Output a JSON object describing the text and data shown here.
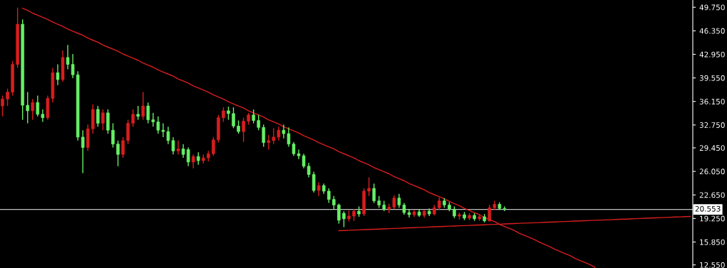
{
  "chart_data": {
    "type": "candlestick",
    "categories": [
      null,
      null,
      null,
      null,
      null,
      null,
      null,
      null,
      null,
      null,
      null,
      null,
      null,
      null,
      null,
      null,
      null,
      null,
      null,
      null,
      null,
      null,
      null,
      null,
      null,
      null,
      null,
      null,
      null,
      null,
      null,
      null,
      null,
      null,
      null,
      null,
      null,
      null,
      null,
      null,
      null,
      null,
      null,
      null,
      null,
      null,
      null,
      null,
      null,
      null,
      null,
      null,
      null,
      null,
      null,
      null,
      null,
      null,
      null,
      null,
      null,
      null,
      null,
      null,
      null,
      null,
      null,
      null,
      null,
      null,
      null,
      null,
      null,
      null,
      null,
      null,
      null,
      null,
      null,
      null,
      null,
      null,
      null,
      null,
      null,
      null,
      null,
      null,
      null,
      null,
      null,
      null,
      null,
      null,
      null,
      null,
      null,
      null,
      null,
      null,
      null,
      null,
      null,
      null,
      null,
      null,
      null,
      null,
      null,
      null,
      null,
      null,
      null,
      null,
      null,
      null,
      null,
      null,
      null,
      null,
      null,
      null,
      null,
      null,
      null,
      null,
      null,
      null,
      null,
      null,
      null,
      null,
      null,
      null,
      null,
      null,
      null,
      null
    ],
    "ohlc": [
      [
        35.5,
        37,
        34,
        36.5
      ],
      [
        36.5,
        38,
        35.5,
        37.5
      ],
      [
        37.5,
        42,
        37,
        41.5
      ],
      [
        41.5,
        49.7,
        41,
        47.3
      ],
      [
        47.3,
        48,
        33.5,
        35.6
      ],
      [
        35.6,
        37.5,
        33,
        34.8
      ],
      [
        34.8,
        36.5,
        33.5,
        36
      ],
      [
        36,
        37,
        34,
        34.3
      ],
      [
        34.3,
        35,
        33.2,
        33.8
      ],
      [
        33.8,
        37,
        33.5,
        36.6
      ],
      [
        36.6,
        41,
        36,
        40.3
      ],
      [
        40.3,
        41.5,
        38.5,
        39.3
      ],
      [
        39.3,
        43.5,
        39,
        42.5
      ],
      [
        42.5,
        44.3,
        40.8,
        41.5
      ],
      [
        41.5,
        43,
        39.5,
        40
      ],
      [
        40,
        40.5,
        30.5,
        31
      ],
      [
        31,
        32,
        25.8,
        29.5
      ],
      [
        29.5,
        32.8,
        29,
        32.2
      ],
      [
        32.2,
        35.7,
        31.5,
        35
      ],
      [
        35,
        35.5,
        32.5,
        33
      ],
      [
        33,
        35,
        32,
        34.5
      ],
      [
        34.5,
        35,
        31.5,
        32
      ],
      [
        32,
        33,
        29.5,
        30
      ],
      [
        30,
        30.5,
        26.8,
        28.5
      ],
      [
        28.5,
        31,
        28,
        30.5
      ],
      [
        30.5,
        33.5,
        30,
        33
      ],
      [
        33,
        35,
        32.5,
        34.3
      ],
      [
        34.3,
        35.5,
        33.5,
        34
      ],
      [
        34,
        37.5,
        33.5,
        35.5
      ],
      [
        35.5,
        36,
        33,
        33.5
      ],
      [
        33.5,
        34.5,
        32.5,
        33.2
      ],
      [
        33.2,
        34,
        31.5,
        32
      ],
      [
        32,
        33,
        31,
        31.8
      ],
      [
        31.8,
        32.5,
        30,
        30.5
      ],
      [
        30.5,
        31,
        28.5,
        29
      ],
      [
        29,
        30.5,
        28.5,
        29.3
      ],
      [
        29.3,
        30,
        28,
        28.5
      ],
      [
        29.2,
        29.5,
        26.8,
        27.4
      ],
      [
        27.4,
        28.5,
        26.5,
        28.2
      ],
      [
        28.2,
        28.8,
        27,
        27.6
      ],
      [
        27.6,
        28.5,
        27.2,
        28
      ],
      [
        28,
        29,
        27.5,
        28.6
      ],
      [
        28.6,
        31,
        28.3,
        30.6
      ],
      [
        30.6,
        34.2,
        30.2,
        33.8
      ],
      [
        33.8,
        35.3,
        33.2,
        34.8
      ],
      [
        34.8,
        35.4,
        33.5,
        34.4
      ],
      [
        34.4,
        35.3,
        32.3,
        32.6
      ],
      [
        32.6,
        33.4,
        31.5,
        31.8
      ],
      [
        31.8,
        33.8,
        30.3,
        33.3
      ],
      [
        33.3,
        34.5,
        32.8,
        34.2
      ],
      [
        34.2,
        35,
        33,
        33.4
      ],
      [
        33.4,
        34.2,
        32,
        32.4
      ],
      [
        32.4,
        32.8,
        29.6,
        30.2
      ],
      [
        30.2,
        31.3,
        29.2,
        30.5
      ],
      [
        30.5,
        32.3,
        30,
        31
      ],
      [
        31,
        32.5,
        30.5,
        32
      ],
      [
        32,
        32.8,
        30.8,
        31.5
      ],
      [
        31.5,
        32.4,
        29.6,
        30
      ],
      [
        30,
        30.3,
        28.3,
        28.6
      ],
      [
        28.6,
        29.2,
        27.8,
        28.3
      ],
      [
        28.3,
        28.6,
        26.5,
        26.8
      ],
      [
        26.8,
        27.3,
        25.2,
        25.6
      ],
      [
        25.6,
        26,
        23,
        23.3
      ],
      [
        23.3,
        24.5,
        22.5,
        24
      ],
      [
        24,
        24.3,
        22.8,
        23.2
      ],
      [
        23.2,
        23.6,
        21.5,
        22
      ],
      [
        22,
        22.5,
        20.6,
        21.2
      ],
      [
        21.2,
        21.4,
        18.5,
        19
      ],
      [
        20,
        20.3,
        18,
        19.2
      ],
      [
        19.2,
        20.4,
        18.8,
        19.6
      ],
      [
        19.6,
        20.6,
        18.9,
        20.3
      ],
      [
        20.3,
        21,
        19.5,
        19.9
      ],
      [
        19.9,
        23.6,
        19.6,
        23.2
      ],
      [
        23.2,
        25.2,
        22.5,
        23.6
      ],
      [
        23.6,
        24.3,
        21.5,
        21.8
      ],
      [
        21.8,
        22.5,
        20.8,
        21.2
      ],
      [
        21.2,
        21.8,
        20.3,
        20.6
      ],
      [
        20.6,
        21.4,
        20,
        20.9
      ],
      [
        20.9,
        22.6,
        20.6,
        22.2
      ],
      [
        22.2,
        22.8,
        20.8,
        21.2
      ],
      [
        21.2,
        21.5,
        19.8,
        20.1
      ],
      [
        20.1,
        20.6,
        19.4,
        19.8
      ],
      [
        19.8,
        20.5,
        19.5,
        20.2
      ],
      [
        20.2,
        20.6,
        19.5,
        19.7
      ],
      [
        19.7,
        20.5,
        19.4,
        20.3
      ],
      [
        20.3,
        20.7,
        19.6,
        19.9
      ],
      [
        19.9,
        21.2,
        19.7,
        20.8
      ],
      [
        20.8,
        22.3,
        20.5,
        21.8
      ],
      [
        21.8,
        22.2,
        20.8,
        21.2
      ],
      [
        21.2,
        21.6,
        20.3,
        20.6
      ],
      [
        20.6,
        21,
        19.3,
        19.6
      ],
      [
        19.6,
        20.1,
        19.1,
        19.8
      ],
      [
        19.8,
        20.2,
        19,
        19.3
      ],
      [
        19.3,
        20,
        19,
        19.7
      ],
      [
        19.7,
        20,
        18.9,
        19.2
      ],
      [
        19.2,
        19.8,
        18.9,
        19.5
      ],
      [
        19.5,
        19.9,
        18.7,
        18.9
      ],
      [
        18.9,
        21.2,
        18.8,
        20.8
      ],
      [
        20.8,
        21.8,
        20.5,
        21.3
      ],
      [
        21.3,
        21.6,
        20.5,
        20.7
      ],
      [
        20.7,
        21,
        20.3,
        20.55
      ],
      null,
      null,
      null,
      null,
      null,
      null,
      null,
      null,
      null,
      null,
      null,
      null,
      null,
      null,
      null,
      null,
      null,
      null,
      null,
      null,
      null,
      null,
      null,
      null,
      null,
      null,
      null,
      null,
      null,
      null,
      null,
      null,
      null,
      null,
      null,
      null,
      null
    ],
    "colors": [
      "#d81e1e",
      "#d81e1e",
      "#d81e1e",
      "#d81e1e",
      "#66f066",
      "#66f066",
      "#d81e1e",
      "#66f066",
      "#66f066",
      "#d81e1e",
      "#d81e1e",
      "#66f066",
      "#d81e1e",
      "#66f066",
      "#66f066",
      "#66f066",
      "#66f066",
      "#d81e1e",
      "#d81e1e",
      "#66f066",
      "#d81e1e",
      "#66f066",
      "#66f066",
      "#66f066",
      "#d81e1e",
      "#d81e1e",
      "#d81e1e",
      "#66f066",
      "#d81e1e",
      "#66f066",
      "#66f066",
      "#66f066",
      "#66f066",
      "#66f066",
      "#66f066",
      "#d81e1e",
      "#66f066",
      "#66f066",
      "#d81e1e",
      "#66f066",
      "#d81e1e",
      "#d81e1e",
      "#d81e1e",
      "#d81e1e",
      "#d81e1e",
      "#66f066",
      "#66f066",
      "#66f066",
      "#d81e1e",
      "#d81e1e",
      "#66f066",
      "#66f066",
      "#66f066",
      "#d81e1e",
      "#d81e1e",
      "#d81e1e",
      "#66f066",
      "#66f066",
      "#66f066",
      "#66f066",
      "#66f066",
      "#66f066",
      "#66f066",
      "#d81e1e",
      "#66f066",
      "#66f066",
      "#66f066",
      "#66f066",
      "#66f066",
      "#d81e1e",
      "#d81e1e",
      "#66f066",
      "#d81e1e",
      "#d81e1e",
      "#66f066",
      "#66f066",
      "#66f066",
      "#d81e1e",
      "#d81e1e",
      "#66f066",
      "#66f066",
      "#66f066",
      "#d81e1e",
      "#66f066",
      "#d81e1e",
      "#66f066",
      "#d81e1e",
      "#d81e1e",
      "#66f066",
      "#66f066",
      "#66f066",
      "#d81e1e",
      "#66f066",
      "#d81e1e",
      "#66f066",
      "#d81e1e",
      "#66f066",
      "#d81e1e",
      "#d81e1e",
      "#66f066",
      "#66f066",
      null,
      null,
      null,
      null,
      null,
      null,
      null,
      null,
      null,
      null,
      null,
      null,
      null,
      null,
      null,
      null,
      null,
      null,
      null,
      null,
      null,
      null,
      null,
      null,
      null,
      null,
      null,
      null,
      null,
      null,
      null,
      null,
      null,
      null,
      null,
      null,
      null
    ],
    "series": [
      {
        "type": "line",
        "color": "#d81e1e",
        "values": [
          null,
          null,
          null,
          null,
          49.6,
          49.3,
          48.9,
          48.6,
          48.3,
          48.0,
          47.6,
          47.3,
          47.0,
          46.6,
          46.3,
          46.0,
          45.7,
          45.3,
          45.0,
          44.7,
          44.3,
          44.0,
          43.7,
          43.4,
          43.0,
          42.7,
          42.4,
          42.1,
          41.7,
          41.4,
          41.1,
          40.7,
          40.4,
          40.1,
          39.8,
          39.4,
          39.1,
          38.8,
          38.4,
          38.1,
          37.8,
          37.5,
          37.1,
          36.8,
          36.5,
          36.1,
          35.8,
          35.5,
          35.2,
          34.8,
          34.5,
          34.2,
          33.9,
          33.5,
          33.2,
          32.9,
          32.5,
          32.2,
          31.9,
          31.6,
          31.2,
          30.9,
          30.6,
          30.2,
          29.9,
          29.6,
          29.3,
          28.9,
          28.6,
          28.3,
          28.0,
          27.6,
          27.3,
          27.0,
          26.6,
          26.3,
          26.0,
          25.7,
          25.3,
          25.0,
          24.7,
          24.3,
          24.0,
          23.7,
          23.4,
          23.0,
          22.7,
          22.4,
          22.1,
          21.7,
          21.4,
          21.1,
          20.7,
          20.4,
          20.1,
          19.8,
          19.4,
          19.1,
          18.8,
          18.4,
          18.1,
          17.8,
          17.5,
          17.1,
          16.8,
          16.5,
          16.2,
          15.8,
          15.5,
          15.2,
          14.8,
          14.5,
          14.2,
          13.9,
          13.5,
          13.2,
          12.9,
          12.6,
          12.2,
          null,
          null,
          null,
          null,
          null,
          null,
          null,
          null,
          null,
          null,
          null,
          null,
          null,
          null,
          null,
          null,
          null,
          null,
          null
        ]
      },
      {
        "type": "line",
        "color": "#d81e1e",
        "values": [
          null,
          null,
          null,
          null,
          null,
          null,
          null,
          null,
          null,
          null,
          null,
          null,
          null,
          null,
          null,
          null,
          null,
          null,
          null,
          null,
          null,
          null,
          null,
          null,
          null,
          null,
          null,
          null,
          null,
          null,
          null,
          null,
          null,
          null,
          null,
          null,
          null,
          null,
          null,
          null,
          null,
          null,
          null,
          null,
          null,
          null,
          null,
          null,
          null,
          null,
          null,
          null,
          null,
          null,
          null,
          null,
          null,
          null,
          null,
          null,
          null,
          null,
          null,
          null,
          null,
          null,
          null,
          17.49,
          17.52,
          17.55,
          17.58,
          17.61,
          17.64,
          17.67,
          17.7,
          17.72,
          17.75,
          17.78,
          17.81,
          17.84,
          17.87,
          17.9,
          17.93,
          17.96,
          17.99,
          18.02,
          18.05,
          18.08,
          18.11,
          18.14,
          18.16,
          18.19,
          18.22,
          18.25,
          18.28,
          18.31,
          18.34,
          18.37,
          18.4,
          18.43,
          18.46,
          18.49,
          18.52,
          18.55,
          18.58,
          18.6,
          18.63,
          18.66,
          18.69,
          18.72,
          18.75,
          18.78,
          18.81,
          18.84,
          18.87,
          18.9,
          18.93,
          18.96,
          18.99,
          19.02,
          19.04,
          19.07,
          19.1,
          19.13,
          19.16,
          19.19,
          19.22,
          19.25,
          19.28,
          19.31,
          19.34,
          19.37,
          19.4,
          19.43,
          19.46,
          19.48,
          19.51,
          19.54
        ]
      }
    ],
    "ylim": [
      12.1,
      50.8
    ],
    "yticks": [
      {
        "value": 49.75,
        "label": "49.750"
      },
      {
        "value": 46.35,
        "label": "46.350"
      },
      {
        "value": 42.95,
        "label": "42.950"
      },
      {
        "value": 39.55,
        "label": "39.550"
      },
      {
        "value": 36.15,
        "label": "36.150"
      },
      {
        "value": 32.75,
        "label": "32.750"
      },
      {
        "value": 29.45,
        "label": "29.450"
      },
      {
        "value": 26.05,
        "label": "26.050"
      },
      {
        "value": 22.65,
        "label": "22.650"
      },
      {
        "value": 19.25,
        "label": "19.250"
      },
      {
        "value": 15.85,
        "label": "15.850"
      },
      {
        "value": 12.55,
        "label": "12.550"
      }
    ],
    "tick_labels": "y",
    "grid": false,
    "ref_lines": [
      {
        "axis": "y",
        "value": 20.553,
        "label": "20.553",
        "color": "#c0c0c0"
      }
    ]
  }
}
